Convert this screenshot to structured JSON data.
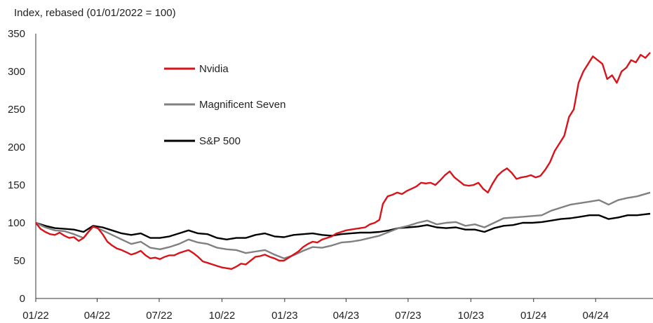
{
  "chart_data": {
    "type": "line",
    "title": "",
    "ylabel": "Index, rebased (01/01/2022 = 100)",
    "xlabel": "",
    "ylim": [
      0,
      350
    ],
    "yticks": [
      0,
      50,
      100,
      150,
      200,
      250,
      300,
      350
    ],
    "xlim": [
      "2022-01-01",
      "2024-06-20"
    ],
    "xticks": [
      {
        "date": "2022-01-01",
        "label": "01/22"
      },
      {
        "date": "2022-04-01",
        "label": "04/22"
      },
      {
        "date": "2022-07-01",
        "label": "07/22"
      },
      {
        "date": "2022-10-01",
        "label": "10/22"
      },
      {
        "date": "2023-01-01",
        "label": "01/23"
      },
      {
        "date": "2023-04-01",
        "label": "04/23"
      },
      {
        "date": "2023-07-01",
        "label": "07/23"
      },
      {
        "date": "2023-10-01",
        "label": "10/23"
      },
      {
        "date": "2024-01-01",
        "label": "01/24"
      },
      {
        "date": "2024-04-01",
        "label": "04/24"
      }
    ],
    "grid": false,
    "legend_position": "top-left",
    "series": [
      {
        "name": "Nvidia",
        "color": "#d7141a",
        "points": [
          [
            "2022-01-01",
            100
          ],
          [
            "2022-01-08",
            92
          ],
          [
            "2022-01-15",
            88
          ],
          [
            "2022-01-22",
            85
          ],
          [
            "2022-01-29",
            84
          ],
          [
            "2022-02-05",
            87
          ],
          [
            "2022-02-12",
            83
          ],
          [
            "2022-02-19",
            80
          ],
          [
            "2022-02-26",
            81
          ],
          [
            "2022-03-05",
            76
          ],
          [
            "2022-03-12",
            80
          ],
          [
            "2022-03-19",
            88
          ],
          [
            "2022-03-26",
            95
          ],
          [
            "2022-04-02",
            93
          ],
          [
            "2022-04-09",
            85
          ],
          [
            "2022-04-16",
            75
          ],
          [
            "2022-04-23",
            70
          ],
          [
            "2022-04-30",
            66
          ],
          [
            "2022-05-07",
            64
          ],
          [
            "2022-05-14",
            61
          ],
          [
            "2022-05-21",
            58
          ],
          [
            "2022-05-28",
            60
          ],
          [
            "2022-06-04",
            63
          ],
          [
            "2022-06-11",
            57
          ],
          [
            "2022-06-18",
            53
          ],
          [
            "2022-06-25",
            54
          ],
          [
            "2022-07-02",
            52
          ],
          [
            "2022-07-09",
            55
          ],
          [
            "2022-07-16",
            57
          ],
          [
            "2022-07-23",
            57
          ],
          [
            "2022-07-30",
            60
          ],
          [
            "2022-08-06",
            62
          ],
          [
            "2022-08-13",
            64
          ],
          [
            "2022-08-20",
            60
          ],
          [
            "2022-08-27",
            55
          ],
          [
            "2022-09-03",
            49
          ],
          [
            "2022-09-10",
            47
          ],
          [
            "2022-09-17",
            45
          ],
          [
            "2022-09-24",
            43
          ],
          [
            "2022-10-01",
            41
          ],
          [
            "2022-10-08",
            40
          ],
          [
            "2022-10-15",
            39
          ],
          [
            "2022-10-22",
            42
          ],
          [
            "2022-10-29",
            46
          ],
          [
            "2022-11-05",
            45
          ],
          [
            "2022-11-12",
            50
          ],
          [
            "2022-11-19",
            55
          ],
          [
            "2022-11-26",
            56
          ],
          [
            "2022-12-03",
            58
          ],
          [
            "2022-12-10",
            55
          ],
          [
            "2022-12-17",
            53
          ],
          [
            "2022-12-24",
            50
          ],
          [
            "2022-12-31",
            50
          ],
          [
            "2023-01-07",
            54
          ],
          [
            "2023-01-14",
            58
          ],
          [
            "2023-01-21",
            62
          ],
          [
            "2023-01-28",
            68
          ],
          [
            "2023-02-04",
            72
          ],
          [
            "2023-02-11",
            75
          ],
          [
            "2023-02-18",
            74
          ],
          [
            "2023-02-25",
            78
          ],
          [
            "2023-03-04",
            80
          ],
          [
            "2023-03-11",
            82
          ],
          [
            "2023-03-18",
            86
          ],
          [
            "2023-03-25",
            88
          ],
          [
            "2023-04-01",
            90
          ],
          [
            "2023-04-08",
            91
          ],
          [
            "2023-04-15",
            92
          ],
          [
            "2023-04-22",
            93
          ],
          [
            "2023-04-29",
            94
          ],
          [
            "2023-05-06",
            98
          ],
          [
            "2023-05-13",
            100
          ],
          [
            "2023-05-20",
            104
          ],
          [
            "2023-05-25",
            125
          ],
          [
            "2023-06-01",
            135
          ],
          [
            "2023-06-08",
            137
          ],
          [
            "2023-06-15",
            140
          ],
          [
            "2023-06-22",
            138
          ],
          [
            "2023-06-29",
            142
          ],
          [
            "2023-07-06",
            145
          ],
          [
            "2023-07-13",
            148
          ],
          [
            "2023-07-20",
            153
          ],
          [
            "2023-07-27",
            152
          ],
          [
            "2023-08-03",
            153
          ],
          [
            "2023-08-10",
            150
          ],
          [
            "2023-08-17",
            156
          ],
          [
            "2023-08-24",
            163
          ],
          [
            "2023-08-31",
            168
          ],
          [
            "2023-09-07",
            160
          ],
          [
            "2023-09-14",
            155
          ],
          [
            "2023-09-21",
            150
          ],
          [
            "2023-09-28",
            149
          ],
          [
            "2023-10-05",
            150
          ],
          [
            "2023-10-12",
            153
          ],
          [
            "2023-10-19",
            145
          ],
          [
            "2023-10-26",
            140
          ],
          [
            "2023-11-02",
            152
          ],
          [
            "2023-11-09",
            162
          ],
          [
            "2023-11-16",
            168
          ],
          [
            "2023-11-23",
            172
          ],
          [
            "2023-11-30",
            166
          ],
          [
            "2023-12-07",
            158
          ],
          [
            "2023-12-14",
            160
          ],
          [
            "2023-12-21",
            161
          ],
          [
            "2023-12-28",
            163
          ],
          [
            "2024-01-04",
            160
          ],
          [
            "2024-01-11",
            162
          ],
          [
            "2024-01-18",
            170
          ],
          [
            "2024-01-25",
            180
          ],
          [
            "2024-02-01",
            195
          ],
          [
            "2024-02-08",
            205
          ],
          [
            "2024-02-15",
            215
          ],
          [
            "2024-02-22",
            240
          ],
          [
            "2024-02-29",
            250
          ],
          [
            "2024-03-07",
            285
          ],
          [
            "2024-03-14",
            300
          ],
          [
            "2024-03-21",
            310
          ],
          [
            "2024-03-28",
            320
          ],
          [
            "2024-04-04",
            315
          ],
          [
            "2024-04-11",
            310
          ],
          [
            "2024-04-18",
            290
          ],
          [
            "2024-04-25",
            295
          ],
          [
            "2024-05-02",
            285
          ],
          [
            "2024-05-09",
            300
          ],
          [
            "2024-05-16",
            305
          ],
          [
            "2024-05-23",
            315
          ],
          [
            "2024-05-30",
            312
          ],
          [
            "2024-06-06",
            322
          ],
          [
            "2024-06-13",
            318
          ],
          [
            "2024-06-20",
            325
          ]
        ]
      },
      {
        "name": "Magnificent Seven",
        "color": "#808080",
        "points": [
          [
            "2022-01-01",
            100
          ],
          [
            "2022-01-15",
            94
          ],
          [
            "2022-01-29",
            90
          ],
          [
            "2022-02-12",
            89
          ],
          [
            "2022-02-26",
            85
          ],
          [
            "2022-03-12",
            80
          ],
          [
            "2022-03-26",
            95
          ],
          [
            "2022-04-09",
            90
          ],
          [
            "2022-04-23",
            84
          ],
          [
            "2022-05-07",
            78
          ],
          [
            "2022-05-21",
            72
          ],
          [
            "2022-06-04",
            75
          ],
          [
            "2022-06-18",
            67
          ],
          [
            "2022-07-02",
            65
          ],
          [
            "2022-07-16",
            68
          ],
          [
            "2022-07-30",
            72
          ],
          [
            "2022-08-13",
            78
          ],
          [
            "2022-08-27",
            74
          ],
          [
            "2022-09-10",
            72
          ],
          [
            "2022-09-24",
            67
          ],
          [
            "2022-10-08",
            65
          ],
          [
            "2022-10-22",
            64
          ],
          [
            "2022-11-05",
            60
          ],
          [
            "2022-11-19",
            62
          ],
          [
            "2022-12-03",
            64
          ],
          [
            "2022-12-17",
            58
          ],
          [
            "2022-12-31",
            53
          ],
          [
            "2023-01-14",
            57
          ],
          [
            "2023-01-28",
            63
          ],
          [
            "2023-02-11",
            68
          ],
          [
            "2023-02-25",
            67
          ],
          [
            "2023-03-11",
            70
          ],
          [
            "2023-03-25",
            74
          ],
          [
            "2023-04-08",
            75
          ],
          [
            "2023-04-22",
            77
          ],
          [
            "2023-05-06",
            80
          ],
          [
            "2023-05-20",
            83
          ],
          [
            "2023-06-03",
            88
          ],
          [
            "2023-06-17",
            93
          ],
          [
            "2023-07-01",
            96
          ],
          [
            "2023-07-15",
            100
          ],
          [
            "2023-07-29",
            103
          ],
          [
            "2023-08-12",
            98
          ],
          [
            "2023-08-26",
            100
          ],
          [
            "2023-09-09",
            101
          ],
          [
            "2023-09-23",
            96
          ],
          [
            "2023-10-07",
            98
          ],
          [
            "2023-10-21",
            94
          ],
          [
            "2023-11-04",
            100
          ],
          [
            "2023-11-18",
            106
          ],
          [
            "2023-12-02",
            107
          ],
          [
            "2023-12-16",
            108
          ],
          [
            "2023-12-30",
            109
          ],
          [
            "2024-01-13",
            110
          ],
          [
            "2024-01-27",
            116
          ],
          [
            "2024-02-10",
            120
          ],
          [
            "2024-02-24",
            124
          ],
          [
            "2024-03-09",
            126
          ],
          [
            "2024-03-23",
            128
          ],
          [
            "2024-04-06",
            130
          ],
          [
            "2024-04-20",
            124
          ],
          [
            "2024-05-04",
            130
          ],
          [
            "2024-05-18",
            133
          ],
          [
            "2024-06-01",
            135
          ],
          [
            "2024-06-20",
            140
          ]
        ]
      },
      {
        "name": "S&P 500",
        "color": "#000000",
        "points": [
          [
            "2022-01-01",
            100
          ],
          [
            "2022-01-15",
            96
          ],
          [
            "2022-01-29",
            93
          ],
          [
            "2022-02-12",
            92
          ],
          [
            "2022-02-26",
            91
          ],
          [
            "2022-03-12",
            88
          ],
          [
            "2022-03-26",
            96
          ],
          [
            "2022-04-09",
            94
          ],
          [
            "2022-04-23",
            90
          ],
          [
            "2022-05-07",
            86
          ],
          [
            "2022-05-21",
            84
          ],
          [
            "2022-06-04",
            86
          ],
          [
            "2022-06-18",
            80
          ],
          [
            "2022-07-02",
            80
          ],
          [
            "2022-07-16",
            82
          ],
          [
            "2022-07-30",
            86
          ],
          [
            "2022-08-13",
            90
          ],
          [
            "2022-08-27",
            86
          ],
          [
            "2022-09-10",
            85
          ],
          [
            "2022-09-24",
            80
          ],
          [
            "2022-10-08",
            78
          ],
          [
            "2022-10-22",
            80
          ],
          [
            "2022-11-05",
            80
          ],
          [
            "2022-11-19",
            84
          ],
          [
            "2022-12-03",
            86
          ],
          [
            "2022-12-17",
            82
          ],
          [
            "2022-12-31",
            81
          ],
          [
            "2023-01-14",
            84
          ],
          [
            "2023-01-28",
            85
          ],
          [
            "2023-02-11",
            86
          ],
          [
            "2023-02-25",
            84
          ],
          [
            "2023-03-11",
            83
          ],
          [
            "2023-03-25",
            85
          ],
          [
            "2023-04-08",
            86
          ],
          [
            "2023-04-22",
            87
          ],
          [
            "2023-05-06",
            87
          ],
          [
            "2023-05-20",
            88
          ],
          [
            "2023-06-03",
            90
          ],
          [
            "2023-06-17",
            93
          ],
          [
            "2023-07-01",
            94
          ],
          [
            "2023-07-15",
            95
          ],
          [
            "2023-07-29",
            97
          ],
          [
            "2023-08-12",
            94
          ],
          [
            "2023-08-26",
            93
          ],
          [
            "2023-09-09",
            94
          ],
          [
            "2023-09-23",
            91
          ],
          [
            "2023-10-07",
            91
          ],
          [
            "2023-10-21",
            88
          ],
          [
            "2023-11-04",
            93
          ],
          [
            "2023-11-18",
            96
          ],
          [
            "2023-12-02",
            97
          ],
          [
            "2023-12-16",
            100
          ],
          [
            "2023-12-30",
            100
          ],
          [
            "2024-01-13",
            101
          ],
          [
            "2024-01-27",
            103
          ],
          [
            "2024-02-10",
            105
          ],
          [
            "2024-02-24",
            106
          ],
          [
            "2024-03-09",
            108
          ],
          [
            "2024-03-23",
            110
          ],
          [
            "2024-04-06",
            110
          ],
          [
            "2024-04-20",
            105
          ],
          [
            "2024-05-04",
            107
          ],
          [
            "2024-05-18",
            110
          ],
          [
            "2024-06-01",
            110
          ],
          [
            "2024-06-20",
            112
          ]
        ]
      }
    ]
  }
}
